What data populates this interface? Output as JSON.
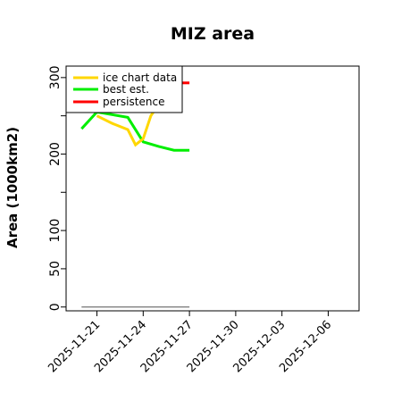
{
  "chart_data": {
    "type": "line",
    "title": "MIZ area",
    "ylabel": "Area (1000km2)",
    "xlabel": "",
    "xlim": [
      "2025-11-19",
      "2025-12-08"
    ],
    "ylim": [
      -5,
      315
    ],
    "yticks": [
      0,
      50,
      100,
      200,
      300
    ],
    "yticks_labels": [
      "0",
      "50",
      "100",
      "200",
      "300"
    ],
    "yticks_minor": [
      150,
      250
    ],
    "xticks": [
      "2025-11-21",
      "2025-11-24",
      "2025-11-27",
      "2025-11-30",
      "2025-12-03",
      "2025-12-06"
    ],
    "legend": {
      "placement": "top-left",
      "entries": [
        {
          "label": "ice chart data",
          "color": "#FFD700"
        },
        {
          "label": "best est.",
          "color": "#00EE00"
        },
        {
          "label": "persistence",
          "color": "#FF0000"
        }
      ]
    },
    "series": [
      {
        "name": "ice chart data",
        "color": "#FFD700",
        "x": [
          "2025-11-21",
          "2025-11-22",
          "2025-11-23",
          "2025-11-23.5",
          "2025-11-24",
          "2025-11-24.5",
          "2025-11-25",
          "2025-11-26",
          "2025-11-26.3"
        ],
        "values": [
          250,
          240,
          232,
          212,
          220,
          250,
          265,
          290,
          308
        ]
      },
      {
        "name": "best est.",
        "color": "#00EE00",
        "x": [
          "2025-11-20",
          "2025-11-21",
          "2025-11-23",
          "2025-11-24",
          "2025-11-25",
          "2025-11-26",
          "2025-11-27"
        ],
        "values": [
          233,
          255,
          248,
          216,
          210,
          205,
          205
        ]
      },
      {
        "name": "persistence",
        "color": "#FF0000",
        "x": [
          "2025-11-26.3",
          "2025-11-27"
        ],
        "values": [
          293,
          293
        ]
      },
      {
        "name": "",
        "color": "#808080",
        "x": [
          "2025-11-20",
          "2025-11-27"
        ],
        "values": [
          0,
          0
        ]
      }
    ]
  }
}
